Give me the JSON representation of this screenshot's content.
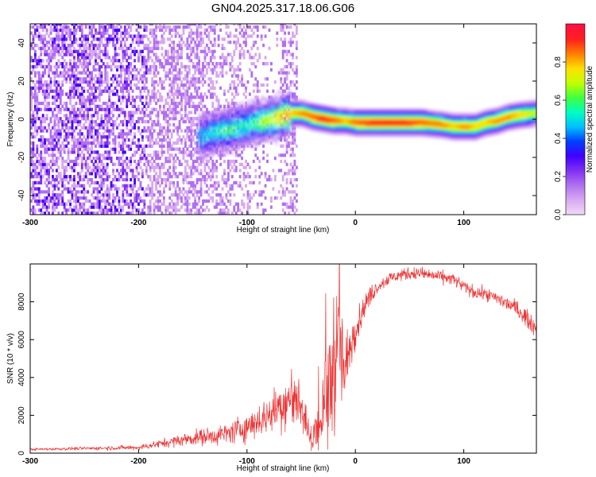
{
  "figure_title": "GN04.2025.317.18.06.G06",
  "chart_data": [
    {
      "type": "heatmap",
      "title": "GN04.2025.317.18.06.G06",
      "xlabel": "Height of straight line (km)",
      "ylabel": "Frequency (Hz)",
      "xlim": [
        -300,
        167
      ],
      "ylim": [
        -50,
        50
      ],
      "x_ticks": [
        "-300",
        "-200",
        "-100",
        "0",
        "100"
      ],
      "x_tick_values": [
        -300,
        -200,
        -100,
        0,
        100
      ],
      "y_ticks": [
        "-40",
        "-20",
        "0",
        "20",
        "40"
      ],
      "y_tick_values": [
        -40,
        -20,
        0,
        20,
        40
      ],
      "colorbar": {
        "label": "Normalized spectral amplitude",
        "ticks": [
          "0.0",
          "0.2",
          "0.4",
          "0.6",
          "0.8"
        ],
        "tick_values": [
          0.0,
          0.2,
          0.4,
          0.6,
          0.8
        ],
        "range": [
          0,
          1
        ],
        "colors": [
          "#f0d8f8",
          "#d8a8f0",
          "#b070f0",
          "#8030f0",
          "#4000ff",
          "#0040ff",
          "#00c0ff",
          "#00ffc0",
          "#40ff40",
          "#c0ff00",
          "#ffe000",
          "#ff8000",
          "#ff2020",
          "#ff1040"
        ]
      },
      "ridge": {
        "x": [
          -145,
          -130,
          -115,
          -100,
          -85,
          -70,
          -60,
          -50,
          -40,
          -30,
          -20,
          -10,
          0,
          20,
          40,
          60,
          80,
          90,
          100,
          110,
          120,
          130,
          140,
          150,
          167
        ],
        "freq": [
          -9,
          -7,
          -5,
          -3,
          -1,
          1,
          3,
          3,
          1,
          0,
          -1,
          -1,
          -2,
          -2,
          -2,
          -2,
          -3,
          -4,
          -4,
          -4,
          -2,
          -1,
          1,
          2,
          3
        ],
        "amplitude": [
          0.4,
          0.45,
          0.5,
          0.45,
          0.6,
          0.7,
          0.8,
          0.85,
          0.9,
          0.95,
          0.9,
          0.8,
          0.9,
          0.95,
          0.95,
          0.9,
          0.85,
          0.8,
          0.85,
          0.8,
          0.8,
          0.85,
          0.85,
          0.8,
          0.7
        ]
      },
      "noise_extent_x": [
        -300,
        -60
      ]
    },
    {
      "type": "line",
      "xlabel": "Height of straight line (km)",
      "ylabel": "SNR (10 * v/v)",
      "xlim": [
        -300,
        167
      ],
      "ylim": [
        0,
        10000
      ],
      "x_ticks": [
        "-300",
        "-200",
        "-100",
        "0",
        "100"
      ],
      "x_tick_values": [
        -300,
        -200,
        -100,
        0,
        100
      ],
      "y_ticks": [
        "0",
        "2000",
        "4000",
        "6000",
        "8000"
      ],
      "y_tick_values": [
        0,
        2000,
        4000,
        6000,
        8000
      ],
      "color": "#ee3333",
      "series": [
        {
          "name": "SNR",
          "x": [
            -300,
            -250,
            -200,
            -180,
            -150,
            -120,
            -100,
            -80,
            -60,
            -50,
            -45,
            -40,
            -35,
            -30,
            -25,
            -20,
            -15,
            -10,
            -5,
            0,
            10,
            20,
            30,
            40,
            50,
            60,
            70,
            80,
            90,
            100,
            110,
            120,
            130,
            140,
            150,
            160,
            167
          ],
          "y": [
            200,
            250,
            300,
            500,
            800,
            1000,
            1400,
            2000,
            3000,
            2500,
            1500,
            500,
            1500,
            2000,
            3000,
            5000,
            6000,
            4000,
            5500,
            6500,
            8000,
            8800,
            9200,
            9400,
            9500,
            9500,
            9400,
            9300,
            9200,
            8800,
            8500,
            8400,
            8200,
            7900,
            7600,
            7000,
            6600
          ],
          "noise": [
            60,
            80,
            120,
            200,
            350,
            500,
            700,
            900,
            1500,
            1400,
            900,
            500,
            1500,
            2500,
            3000,
            3500,
            3000,
            2000,
            1500,
            800,
            500,
            350,
            300,
            300,
            300,
            300,
            300,
            300,
            300,
            300,
            300,
            300,
            300,
            400,
            400,
            400,
            400
          ]
        }
      ]
    }
  ]
}
